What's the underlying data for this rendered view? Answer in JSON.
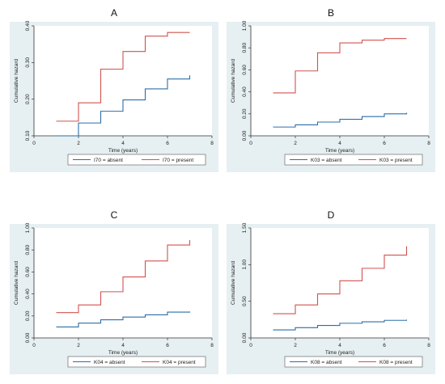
{
  "colors": {
    "panel_background": "#e6eff1",
    "plot_background": "#ffffff",
    "absent": "#2c6ea8",
    "present": "#d0534f",
    "axis": "#333333"
  },
  "chart_data": [
    {
      "type": "line",
      "step": true,
      "title": "A",
      "xlabel": "Time (years)",
      "ylabel": "Cumulative hazard",
      "xlim": [
        0,
        8
      ],
      "xticks": [
        "0",
        "2",
        "4",
        "6",
        "8"
      ],
      "ylim": [
        0.1,
        0.4
      ],
      "yticks": [
        "0.10",
        "0.20",
        "0.30",
        "0.40"
      ],
      "legend_position": "bottom",
      "grid": false,
      "series": [
        {
          "name": "I70 = absent",
          "color_key": "absent",
          "x": [
            1,
            2,
            3,
            4,
            5,
            6,
            7
          ],
          "y": [
            0.1,
            0.135,
            0.167,
            0.198,
            0.228,
            0.255,
            0.265
          ]
        },
        {
          "name": "I70 = present",
          "color_key": "present",
          "x": [
            1,
            2,
            3,
            4,
            5,
            6,
            7
          ],
          "y": [
            0.14,
            0.19,
            0.282,
            0.33,
            0.372,
            0.382,
            0.382
          ]
        }
      ]
    },
    {
      "type": "line",
      "step": true,
      "title": "B",
      "xlabel": "Time (years)",
      "ylabel": "Cumulative hazard",
      "xlim": [
        0,
        8
      ],
      "xticks": [
        "0",
        "2",
        "4",
        "6",
        "8"
      ],
      "ylim": [
        0,
        1
      ],
      "yticks": [
        "0.00",
        "0.20",
        "0.40",
        "0.60",
        "0.80",
        "1.00"
      ],
      "legend_position": "bottom",
      "grid": false,
      "series": [
        {
          "name": "K03 = absent",
          "color_key": "absent",
          "x": [
            1,
            2,
            3,
            4,
            5,
            6,
            7
          ],
          "y": [
            0.08,
            0.1,
            0.125,
            0.15,
            0.175,
            0.2,
            0.21
          ]
        },
        {
          "name": "K03 = present",
          "color_key": "present",
          "x": [
            1,
            2,
            3,
            4,
            5,
            6,
            7
          ],
          "y": [
            0.39,
            0.59,
            0.755,
            0.845,
            0.87,
            0.885,
            0.885
          ]
        }
      ]
    },
    {
      "type": "line",
      "step": true,
      "title": "C",
      "xlabel": "Time (years)",
      "ylabel": "Cumulative hazard",
      "xlim": [
        0,
        8
      ],
      "xticks": [
        "0",
        "2",
        "4",
        "6",
        "8"
      ],
      "ylim": [
        0,
        1
      ],
      "yticks": [
        "0.00",
        "0.20",
        "0.40",
        "0.60",
        "0.80",
        "1.00"
      ],
      "legend_position": "bottom",
      "grid": false,
      "series": [
        {
          "name": "K04 = absent",
          "color_key": "absent",
          "x": [
            1,
            2,
            3,
            4,
            5,
            6,
            7
          ],
          "y": [
            0.1,
            0.135,
            0.165,
            0.19,
            0.21,
            0.235,
            0.24
          ]
        },
        {
          "name": "K04 = present",
          "color_key": "present",
          "x": [
            1,
            2,
            3,
            4,
            5,
            6,
            7
          ],
          "y": [
            0.23,
            0.3,
            0.42,
            0.555,
            0.7,
            0.845,
            0.89
          ]
        }
      ]
    },
    {
      "type": "line",
      "step": true,
      "title": "D",
      "xlabel": "Time (years)",
      "ylabel": "Cumulative hazard",
      "xlim": [
        0,
        8
      ],
      "xticks": [
        "0",
        "2",
        "4",
        "6",
        "8"
      ],
      "ylim": [
        0,
        1.5
      ],
      "yticks": [
        "0.00",
        "0.50",
        "1.00",
        "1.50"
      ],
      "legend_position": "bottom",
      "grid": false,
      "series": [
        {
          "name": "K08 = absent",
          "color_key": "absent",
          "x": [
            1,
            2,
            3,
            4,
            5,
            6,
            7
          ],
          "y": [
            0.11,
            0.14,
            0.17,
            0.2,
            0.22,
            0.24,
            0.25
          ]
        },
        {
          "name": "K08 = present",
          "color_key": "present",
          "x": [
            1,
            2,
            3,
            4,
            5,
            6,
            7
          ],
          "y": [
            0.33,
            0.45,
            0.6,
            0.78,
            0.95,
            1.13,
            1.25
          ]
        }
      ]
    }
  ]
}
